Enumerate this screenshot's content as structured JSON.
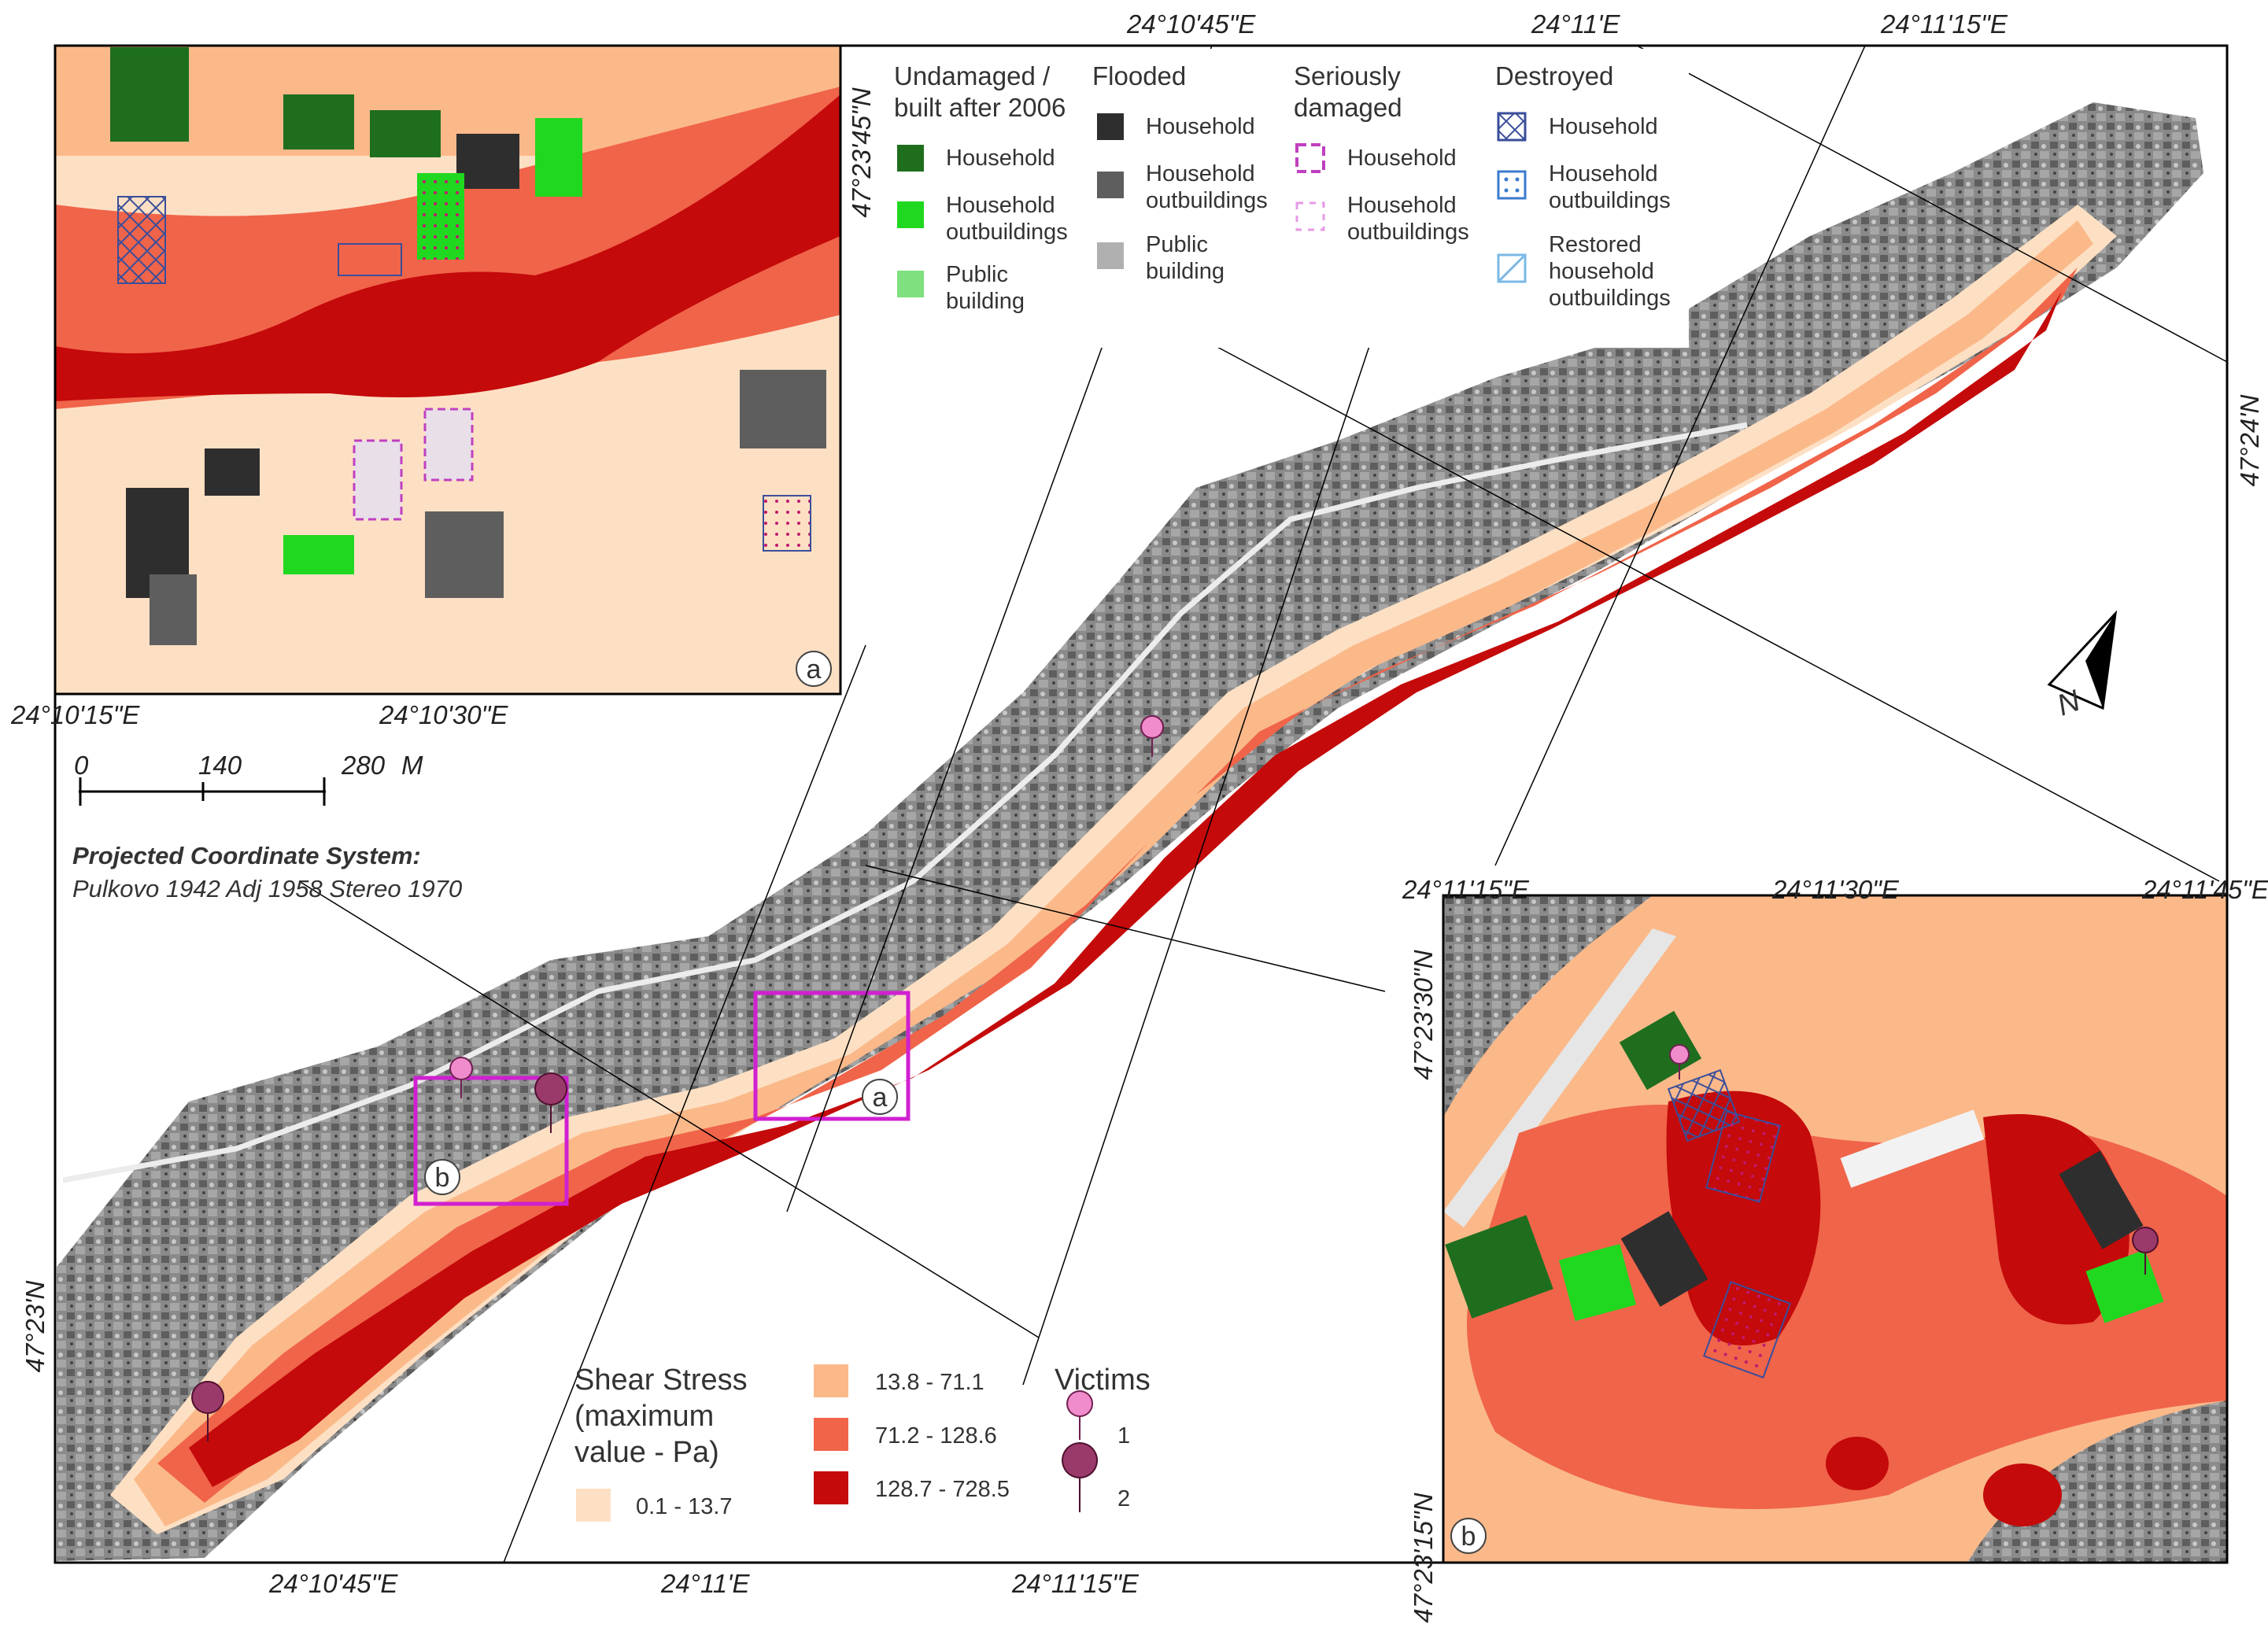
{
  "coordinates": {
    "top": [
      "24°10'45\"E",
      "24°11'E",
      "24°11'15\"E"
    ],
    "main_right": "47°24'N",
    "main_left": "47°23'N",
    "main_bottom": [
      "24°10'45\"E",
      "24°11'E",
      "24°11'15\"E"
    ],
    "inset_a_bottom": [
      "24°10'15\"E",
      "24°10'30\"E"
    ],
    "inset_a_right": "47°23'45\"N",
    "inset_b_top": [
      "24°11'15\"E",
      "24°11'30\"E",
      "24°11'45\"E"
    ],
    "inset_b_left": [
      "47°23'30\"N",
      "47°23'15\"N"
    ]
  },
  "scale_bar": {
    "ticks": [
      "0",
      "140",
      "280"
    ],
    "unit": "M"
  },
  "projection": {
    "title": "Projected Coordinate System:",
    "name": "Pulkovo 1942 Adj 1958 Stereo 1970"
  },
  "north_arrow": {
    "label": "N"
  },
  "inset_labels": {
    "a": "a",
    "b": "b"
  },
  "building_legend": {
    "undamaged": {
      "title_line1": "Undamaged /",
      "title_line2": "built after 2006",
      "items": [
        {
          "line1": "Household",
          "line2": "",
          "color": "#1e6e1e"
        },
        {
          "line1": "Household",
          "line2": "outbuildings",
          "color": "#20d820"
        },
        {
          "line1": "Public",
          "line2": "building",
          "color": "#7ee07e"
        }
      ]
    },
    "flooded": {
      "title_line1": "Flooded",
      "items": [
        {
          "line1": "Household",
          "line2": "",
          "color": "#2e2e2e"
        },
        {
          "line1": "Household",
          "line2": "outbuildings",
          "color": "#5e5e5e"
        },
        {
          "line1": "Public",
          "line2": "building",
          "color": "#b0b0b0"
        }
      ]
    },
    "seriously_damaged": {
      "title_line1": "Seriously",
      "title_line2": "damaged",
      "items": [
        {
          "line1": "Household",
          "line2": "",
          "color": "#c040c0"
        },
        {
          "line1": "Household",
          "line2": "outbuildings",
          "color": "#e69ae6"
        }
      ]
    },
    "destroyed": {
      "title_line1": "Destroyed",
      "items": [
        {
          "line1": "Household",
          "line2": "",
          "line3": "",
          "color": "#3a4e9a"
        },
        {
          "line1": "Household",
          "line2": "outbuildings",
          "line3": "",
          "color": "#3a7acc"
        },
        {
          "line1": "Restored",
          "line2": "household",
          "line3": "outbuildings",
          "color": "#7ab8e6"
        }
      ]
    }
  },
  "shear_legend": {
    "title_line1": "Shear Stress",
    "title_line2": "(maximum",
    "title_line3": "value - Pa)",
    "classes": [
      {
        "label": "0.1 - 13.7",
        "color": "#fde0c4"
      },
      {
        "label": "13.8 - 71.1",
        "color": "#fbb98a"
      },
      {
        "label": "71.2 - 128.6",
        "color": "#f0644a"
      },
      {
        "label": "128.7 - 728.5",
        "color": "#c40a0a"
      }
    ]
  },
  "victims_legend": {
    "title": "Victims",
    "items": [
      {
        "label": "1",
        "color": "#f08ccc"
      },
      {
        "label": "2",
        "color": "#9a3a6a"
      }
    ]
  }
}
